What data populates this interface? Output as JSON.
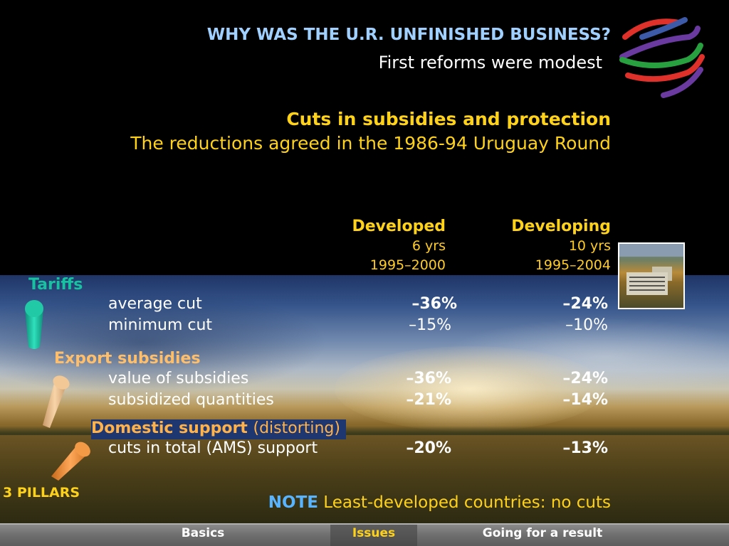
{
  "header": {
    "title": "WHY WAS THE U.R. UNFINISHED BUSINESS?",
    "subtitle": "First reforms were modest",
    "cuts_heading": "Cuts in subsidies and protection",
    "round_line": "The reductions agreed in the 1986-94 Uruguay Round"
  },
  "columns": {
    "developed": {
      "label": "Developed",
      "years": "6 yrs",
      "period": "1995–2000"
    },
    "developing": {
      "label": "Developing",
      "years": "10 yrs",
      "period": "1995–2004"
    }
  },
  "sections": {
    "tariffs": {
      "label": "Tariffs",
      "rows": [
        {
          "label": "average cut",
          "developed": "–36%",
          "developing": "–24%"
        },
        {
          "label": "minimum cut",
          "developed": "–15%",
          "developing": "–10%"
        }
      ]
    },
    "export": {
      "label": "Export subsidies",
      "rows": [
        {
          "label": "value of subsidies",
          "developed": "–36%",
          "developing": "–24%"
        },
        {
          "label": "subsidized quantities",
          "developed": "–21%",
          "developing": "–14%"
        }
      ]
    },
    "domestic": {
      "label": "Domestic support",
      "qualifier": "(distorting)",
      "rows": [
        {
          "label": "cuts in total (AMS) support",
          "developed": "–20%",
          "developing": "–13%"
        }
      ]
    }
  },
  "pillars_label": "3 PILLARS",
  "note": {
    "keyword": "NOTE",
    "text": "Least-developed countries: no cuts"
  },
  "nav": {
    "basics": "Basics",
    "issues": "Issues",
    "result": "Going for a result"
  },
  "colors": {
    "title_blue": "#9fd0ff",
    "yellow": "#ffd21a",
    "tariffs_teal": "#17c2a0",
    "export_peach": "#ffbf6a",
    "domestic_orange": "#ffb24a",
    "note_blue": "#59b4ff"
  },
  "icons": [
    "wto-logo",
    "tariffs-pillar-icon",
    "export-pillar-icon",
    "domestic-pillar-icon",
    "building-photo"
  ]
}
